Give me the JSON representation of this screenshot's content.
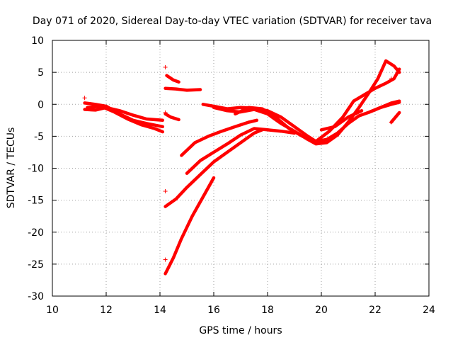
{
  "chart_data": {
    "type": "scatter",
    "title": "Day 071 of 2020, Sidereal Day-to-day VTEC variation (SDTVAR) for receiver tava",
    "xlabel": "GPS time / hours",
    "ylabel": "SDTVAR / TECUs",
    "xlim": [
      10,
      24
    ],
    "ylim": [
      -30,
      10
    ],
    "xticks": [
      10,
      12,
      14,
      16,
      18,
      20,
      22,
      24
    ],
    "yticks": [
      -30,
      -25,
      -20,
      -15,
      -10,
      -5,
      0,
      5,
      10
    ],
    "grid": true,
    "marker": "+",
    "color": "#ff0000",
    "series": [
      {
        "name": "trace-1",
        "points": [
          [
            11.2,
            0.2
          ],
          [
            11.6,
            0.0
          ],
          [
            12.0,
            -0.3
          ],
          [
            12.5,
            -1.5
          ],
          [
            13.0,
            -2.5
          ],
          [
            13.5,
            -3.0
          ],
          [
            14.1,
            -3.5
          ]
        ]
      },
      {
        "name": "trace-2",
        "points": [
          [
            11.3,
            -0.5
          ],
          [
            11.8,
            -0.3
          ],
          [
            12.3,
            -1.2
          ],
          [
            12.8,
            -2.3
          ],
          [
            13.3,
            -3.2
          ],
          [
            13.8,
            -3.8
          ],
          [
            14.1,
            -4.3
          ]
        ]
      },
      {
        "name": "trace-3",
        "points": [
          [
            11.2,
            -0.8
          ],
          [
            11.6,
            -0.9
          ],
          [
            12.0,
            -0.5
          ],
          [
            12.5,
            -1.0
          ],
          [
            13.0,
            -1.7
          ],
          [
            13.5,
            -2.3
          ],
          [
            14.1,
            -2.5
          ]
        ]
      },
      {
        "name": "trace-4",
        "points": [
          [
            14.2,
            -1.5
          ],
          [
            14.4,
            -2.0
          ],
          [
            14.7,
            -2.4
          ]
        ]
      },
      {
        "name": "trace-5",
        "points": [
          [
            14.25,
            4.5
          ],
          [
            14.5,
            3.8
          ],
          [
            14.7,
            3.5
          ]
        ]
      },
      {
        "name": "trace-6",
        "points": [
          [
            14.2,
            2.5
          ],
          [
            14.6,
            2.4
          ],
          [
            15.0,
            2.2
          ],
          [
            15.5,
            2.3
          ]
        ]
      },
      {
        "name": "trace-7",
        "points": [
          [
            14.2,
            -16.0
          ],
          [
            14.6,
            -14.8
          ],
          [
            15.0,
            -13.0
          ],
          [
            15.5,
            -11.0
          ],
          [
            16.0,
            -9.0
          ],
          [
            16.5,
            -7.5
          ],
          [
            17.0,
            -6.0
          ],
          [
            17.5,
            -4.5
          ],
          [
            17.8,
            -4.0
          ]
        ]
      },
      {
        "name": "trace-8",
        "points": [
          [
            14.2,
            -26.5
          ],
          [
            14.5,
            -24.0
          ],
          [
            14.8,
            -21.0
          ],
          [
            15.2,
            -17.5
          ],
          [
            15.6,
            -14.5
          ],
          [
            16.0,
            -11.5
          ]
        ]
      },
      {
        "name": "trace-9",
        "points": [
          [
            15.0,
            -10.8
          ],
          [
            15.5,
            -8.8
          ],
          [
            16.0,
            -7.5
          ],
          [
            16.5,
            -6.2
          ],
          [
            17.0,
            -4.8
          ],
          [
            17.5,
            -3.8
          ],
          [
            18.0,
            -4.0
          ],
          [
            18.5,
            -4.2
          ],
          [
            19.0,
            -4.5
          ]
        ]
      },
      {
        "name": "trace-10",
        "points": [
          [
            14.8,
            -8.0
          ],
          [
            15.3,
            -6.0
          ],
          [
            15.8,
            -5.0
          ],
          [
            16.3,
            -4.2
          ],
          [
            16.8,
            -3.5
          ],
          [
            17.3,
            -2.8
          ],
          [
            17.6,
            -2.5
          ]
        ]
      },
      {
        "name": "trace-11",
        "points": [
          [
            15.6,
            0.0
          ],
          [
            16.0,
            -0.3
          ],
          [
            16.5,
            -0.7
          ],
          [
            17.0,
            -0.5
          ],
          [
            17.5,
            -0.6
          ],
          [
            18.0,
            -1.0
          ],
          [
            18.5,
            -2.0
          ],
          [
            19.0,
            -3.5
          ],
          [
            19.5,
            -5.0
          ],
          [
            19.8,
            -5.8
          ],
          [
            20.2,
            -5.5
          ],
          [
            20.6,
            -4.5
          ],
          [
            21.0,
            -3.0
          ],
          [
            21.4,
            -1.8
          ],
          [
            21.8,
            -1.2
          ],
          [
            22.2,
            -0.5
          ],
          [
            22.6,
            0.0
          ],
          [
            22.9,
            0.3
          ]
        ]
      },
      {
        "name": "trace-12",
        "points": [
          [
            16.0,
            -0.5
          ],
          [
            16.5,
            -1.0
          ],
          [
            17.0,
            -1.2
          ],
          [
            17.5,
            -0.8
          ],
          [
            18.0,
            -1.5
          ],
          [
            18.5,
            -3.0
          ],
          [
            19.0,
            -4.2
          ],
          [
            19.5,
            -5.5
          ],
          [
            19.8,
            -6.2
          ],
          [
            20.2,
            -6.0
          ],
          [
            20.6,
            -4.8
          ],
          [
            21.0,
            -2.8
          ],
          [
            21.4,
            -0.5
          ],
          [
            21.8,
            2.0
          ],
          [
            22.1,
            4.0
          ],
          [
            22.4,
            6.8
          ],
          [
            22.7,
            6.0
          ],
          [
            22.9,
            5.0
          ]
        ]
      },
      {
        "name": "trace-13",
        "points": [
          [
            16.8,
            -1.5
          ],
          [
            17.3,
            -0.5
          ],
          [
            17.8,
            -0.7
          ],
          [
            18.3,
            -2.0
          ],
          [
            18.8,
            -3.8
          ],
          [
            19.3,
            -5.0
          ],
          [
            19.8,
            -5.8
          ],
          [
            20.3,
            -4.2
          ],
          [
            20.8,
            -2.0
          ],
          [
            21.2,
            0.5
          ],
          [
            21.6,
            1.5
          ],
          [
            22.0,
            2.5
          ],
          [
            22.4,
            3.3
          ],
          [
            22.7,
            4.0
          ],
          [
            22.9,
            5.5
          ]
        ]
      },
      {
        "name": "trace-14",
        "points": [
          [
            20.0,
            -4.0
          ],
          [
            20.5,
            -3.5
          ],
          [
            21.0,
            -2.0
          ],
          [
            21.5,
            -1.0
          ]
        ]
      },
      {
        "name": "trace-15",
        "points": [
          [
            21.8,
            -1.2
          ],
          [
            22.2,
            -0.5
          ],
          [
            22.6,
            0.2
          ],
          [
            22.9,
            0.5
          ]
        ]
      },
      {
        "name": "trace-16",
        "points": [
          [
            22.6,
            -2.8
          ],
          [
            22.9,
            -1.3
          ]
        ]
      }
    ],
    "scatter_points": [
      [
        11.2,
        1.0
      ],
      [
        14.2,
        5.8
      ],
      [
        14.2,
        -1.3
      ],
      [
        14.2,
        -13.6
      ],
      [
        14.2,
        -24.3
      ],
      [
        22.6,
        4.0
      ],
      [
        22.6,
        -2.8
      ]
    ]
  }
}
